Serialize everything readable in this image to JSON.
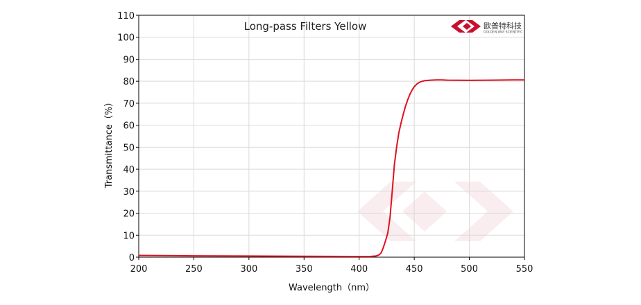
{
  "logo": {
    "name_cn": "欧普特科技",
    "name_en": "GOLDEN WAY SCIENTIFIC",
    "color": "#c8102e"
  },
  "chart_data": {
    "type": "line",
    "title": "Long-pass Filters Yellow",
    "xlabel": "Wavelength（nm）",
    "ylabel": "Transmittance（%）",
    "xlim": [
      200,
      550
    ],
    "ylim": [
      0,
      110
    ],
    "xticks": [
      200,
      250,
      300,
      350,
      400,
      450,
      500,
      550
    ],
    "yticks": [
      0,
      10,
      20,
      30,
      40,
      50,
      60,
      70,
      80,
      90,
      100,
      110
    ],
    "grid": true,
    "series": [
      {
        "color": "#e0101e",
        "x": [
          200,
          250,
          300,
          350,
          400,
          410,
          415,
          418,
          420,
          422,
          424,
          426,
          428,
          430,
          432,
          434,
          436,
          438,
          440,
          442,
          444,
          446,
          448,
          450,
          453,
          456,
          460,
          465,
          470,
          475,
          480,
          500,
          520,
          540,
          550
        ],
        "y": [
          0.8,
          0.6,
          0.5,
          0.4,
          0.3,
          0.3,
          0.5,
          1,
          2,
          4.5,
          7.5,
          11,
          18,
          30,
          42,
          50,
          56.5,
          61,
          65,
          68.5,
          71.5,
          74,
          76,
          77.5,
          79,
          79.8,
          80.3,
          80.5,
          80.6,
          80.6,
          80.5,
          80.4,
          80.5,
          80.6,
          80.6
        ]
      }
    ]
  }
}
